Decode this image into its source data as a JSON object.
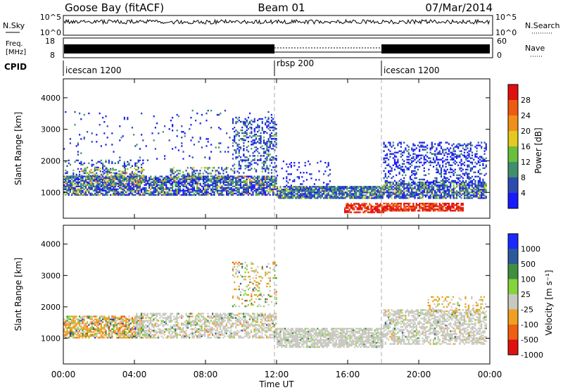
{
  "header": {
    "station": "Goose Bay (fitACF)",
    "beam": "Beam 01",
    "date": "07/Mar/2014"
  },
  "panels": {
    "nsky": {
      "left_label": "N.Sky",
      "right_label": "N.Search",
      "ticks_left": [
        "10^5",
        "10^0"
      ],
      "ticks_right": [
        "10^5",
        "10^0"
      ]
    },
    "freq": {
      "left_label_1": "Freq.",
      "left_label_2": "[MHz]",
      "right_label": "Nave",
      "ticks_left": [
        "18",
        "8"
      ],
      "ticks_right": [
        "60",
        "0"
      ]
    },
    "cpid": {
      "label": "CPID",
      "segments": [
        {
          "name": "icescan 1200",
          "start_hour": 0
        },
        {
          "name": "rbsp 200",
          "start_hour": 12
        },
        {
          "name": "icescan 1200",
          "start_hour": 18
        }
      ]
    }
  },
  "chart_data": [
    {
      "type": "heatmap",
      "name": "power",
      "ylabel": "Slant Range [km]",
      "yticks": [
        "1000",
        "2000",
        "3000",
        "4000"
      ],
      "ylim": [
        180,
        4600
      ],
      "xlim_hours": [
        0,
        24
      ],
      "colorbar_label": "Power [dB]",
      "colorbar_ticks": [
        "4",
        "8",
        "12",
        "16",
        "20",
        "24",
        "28"
      ],
      "colors": [
        "#1a1aff",
        "#2b4bb0",
        "#3f8f6f",
        "#6abf3a",
        "#e5c820",
        "#f0901a",
        "#ee5a10",
        "#e01010"
      ]
    },
    {
      "type": "heatmap",
      "name": "velocity",
      "ylabel": "Slant Range [km]",
      "yticks": [
        "1000",
        "2000",
        "3000",
        "4000"
      ],
      "ylim": [
        180,
        4600
      ],
      "xlim_hours": [
        0,
        24
      ],
      "xlabel": "Time UT",
      "xticks": [
        "00:00",
        "04:00",
        "08:00",
        "12:00",
        "16:00",
        "20:00",
        "00:00"
      ],
      "colorbar_label": "Velocity [m s⁻¹]",
      "colorbar_ticks": [
        "1000",
        "500",
        "100",
        "25",
        "-25",
        "-100",
        "-500",
        "-1000"
      ],
      "colors": [
        "#1a2aff",
        "#2b5a9a",
        "#3f8f3f",
        "#86d43c",
        "#c8c8c0",
        "#f0a020",
        "#ee6010",
        "#e01010"
      ]
    }
  ]
}
